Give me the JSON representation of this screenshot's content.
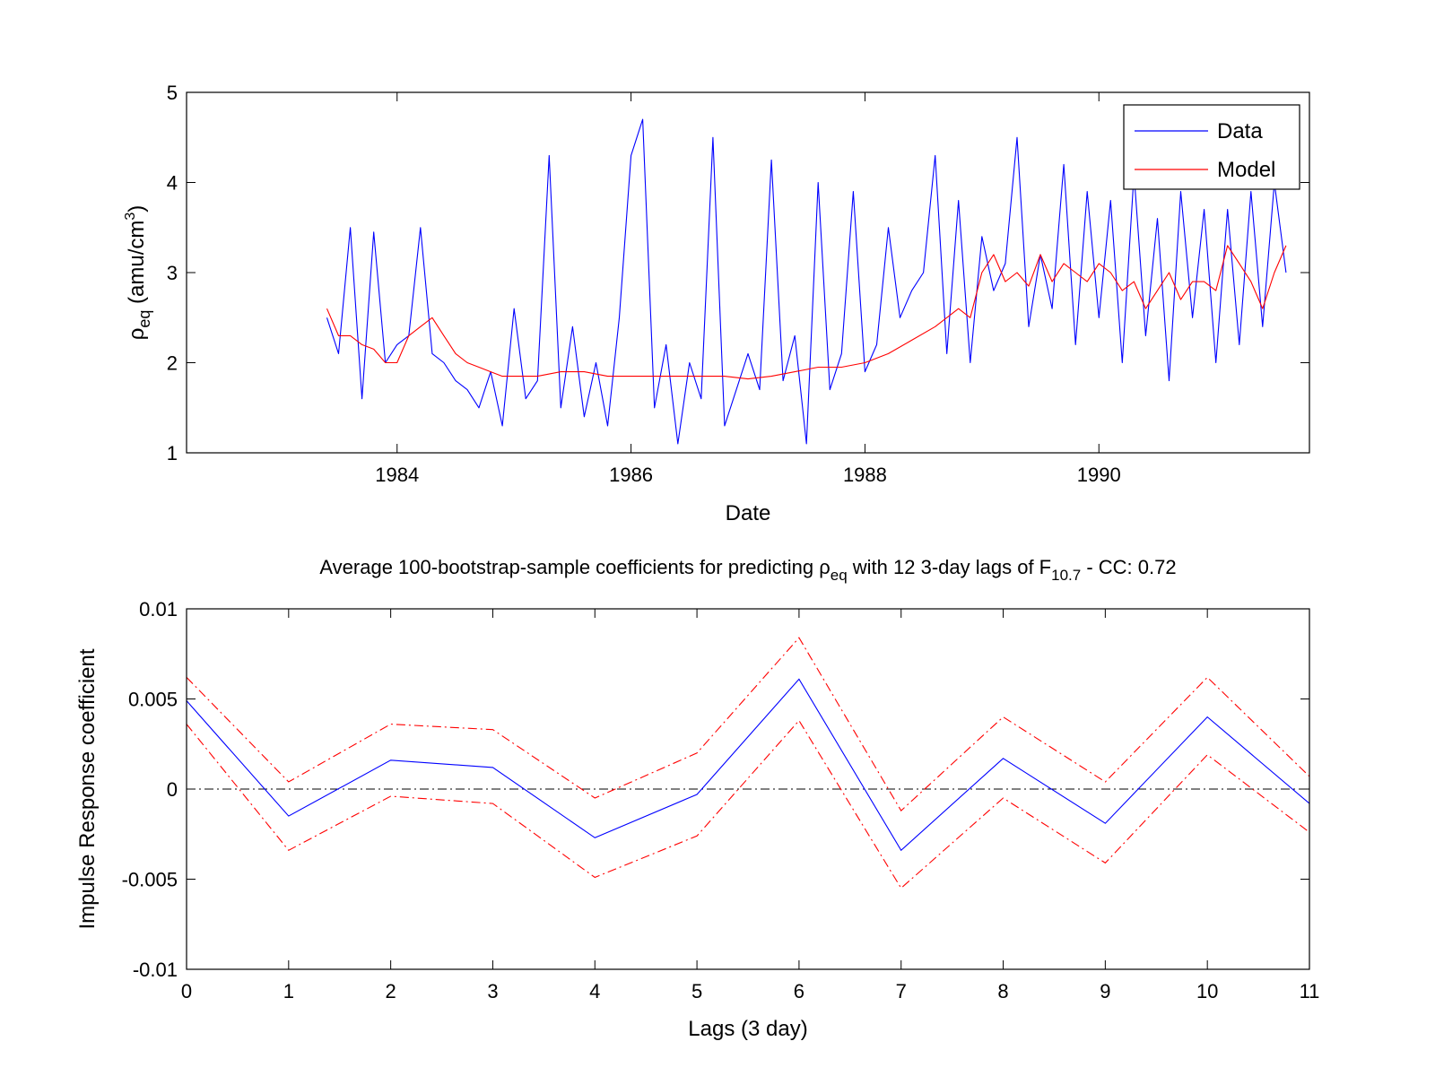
{
  "chart_data": [
    {
      "type": "line",
      "xlabel": "Date",
      "ylabel": {
        "symbol": "ρ",
        "subscript": "eq",
        "unit_prefix": " (amu/cm",
        "unit_sup": "3",
        "unit_suffix": ")"
      },
      "xlim": [
        1982.2,
        1991.8
      ],
      "ylim": [
        1,
        5
      ],
      "xticks": [
        1984,
        1986,
        1988,
        1990
      ],
      "xtick_labels": [
        "1984",
        "1986",
        "1988",
        "1990"
      ],
      "yticks": [
        1,
        2,
        3,
        4,
        5
      ],
      "ytick_labels": [
        "1",
        "2",
        "3",
        "4",
        "5"
      ],
      "legend_position": "top-right",
      "series": [
        {
          "name": "Data",
          "color": "#0000ff",
          "x": [
            1983.4,
            1983.5,
            1983.6,
            1983.7,
            1983.8,
            1983.9,
            1984.0,
            1984.1,
            1984.2,
            1984.3,
            1984.4,
            1984.5,
            1984.6,
            1984.7,
            1984.8,
            1984.9,
            1985.0,
            1985.1,
            1985.2,
            1985.3,
            1985.4,
            1985.5,
            1985.6,
            1985.7,
            1985.8,
            1985.9,
            1986.0,
            1986.1,
            1986.2,
            1986.3,
            1986.4,
            1986.5,
            1986.6,
            1986.7,
            1986.8,
            1986.9,
            1987.0,
            1987.1,
            1987.2,
            1987.3,
            1987.4,
            1987.5,
            1987.6,
            1987.7,
            1987.8,
            1987.9,
            1988.0,
            1988.1,
            1988.2,
            1988.3,
            1988.4,
            1988.5,
            1988.6,
            1988.7,
            1988.8,
            1988.9,
            1989.0,
            1989.1,
            1989.2,
            1989.3,
            1989.4,
            1989.5,
            1989.6,
            1989.7,
            1989.8,
            1989.9,
            1990.0,
            1990.1,
            1990.2,
            1990.3,
            1990.4,
            1990.5,
            1990.6,
            1990.7,
            1990.8,
            1990.9,
            1991.0,
            1991.1,
            1991.2,
            1991.3,
            1991.4,
            1991.5,
            1991.6
          ],
          "values": [
            2.5,
            2.1,
            3.5,
            1.6,
            3.45,
            2.0,
            2.2,
            2.3,
            3.5,
            2.1,
            2.0,
            1.8,
            1.7,
            1.5,
            1.9,
            1.3,
            2.6,
            1.6,
            1.8,
            4.3,
            1.5,
            2.4,
            1.4,
            2.0,
            1.3,
            2.5,
            4.3,
            4.7,
            1.5,
            2.2,
            1.1,
            2.0,
            1.6,
            4.5,
            1.3,
            1.7,
            2.1,
            1.7,
            4.25,
            1.8,
            2.3,
            1.1,
            4.0,
            1.7,
            2.1,
            3.9,
            1.9,
            2.2,
            3.5,
            2.5,
            2.8,
            3.0,
            4.3,
            2.1,
            3.8,
            2.0,
            3.4,
            2.8,
            3.1,
            4.5,
            2.4,
            3.2,
            2.6,
            4.2,
            2.2,
            3.9,
            2.5,
            3.8,
            2.0,
            4.1,
            2.3,
            3.6,
            1.8,
            3.9,
            2.5,
            3.7,
            2.0,
            3.7,
            2.2,
            3.9,
            2.4,
            4.0,
            3.0
          ]
        },
        {
          "name": "Model",
          "color": "#ff0000",
          "x": [
            1983.4,
            1983.5,
            1983.6,
            1983.7,
            1983.8,
            1983.9,
            1984.0,
            1984.1,
            1984.2,
            1984.3,
            1984.4,
            1984.5,
            1984.6,
            1984.7,
            1984.8,
            1984.9,
            1985.0,
            1985.2,
            1985.4,
            1985.6,
            1985.8,
            1986.0,
            1986.2,
            1986.4,
            1986.6,
            1986.8,
            1987.0,
            1987.2,
            1987.4,
            1987.6,
            1987.8,
            1988.0,
            1988.2,
            1988.4,
            1988.6,
            1988.8,
            1988.9,
            1989.0,
            1989.1,
            1989.2,
            1989.3,
            1989.4,
            1989.5,
            1989.6,
            1989.7,
            1989.8,
            1989.9,
            1990.0,
            1990.1,
            1990.2,
            1990.3,
            1990.4,
            1990.5,
            1990.6,
            1990.7,
            1990.8,
            1990.9,
            1991.0,
            1991.1,
            1991.2,
            1991.3,
            1991.4,
            1991.5,
            1991.6
          ],
          "values": [
            2.6,
            2.3,
            2.3,
            2.2,
            2.15,
            2.0,
            2.0,
            2.3,
            2.4,
            2.5,
            2.3,
            2.1,
            2.0,
            1.95,
            1.9,
            1.85,
            1.85,
            1.85,
            1.9,
            1.9,
            1.85,
            1.85,
            1.85,
            1.85,
            1.85,
            1.85,
            1.82,
            1.85,
            1.9,
            1.95,
            1.95,
            2.0,
            2.1,
            2.25,
            2.4,
            2.6,
            2.5,
            3.0,
            3.2,
            2.9,
            3.0,
            2.85,
            3.2,
            2.9,
            3.1,
            3.0,
            2.9,
            3.1,
            3.0,
            2.8,
            2.9,
            2.6,
            2.8,
            3.0,
            2.7,
            2.9,
            2.9,
            2.8,
            3.3,
            3.1,
            2.9,
            2.6,
            3.0,
            3.3
          ]
        }
      ]
    },
    {
      "type": "line",
      "title": {
        "part1": "Average 100-bootstrap-sample coefficients for predicting ",
        "symbol": "ρ",
        "subscript1": "eq",
        "part2": " with 12 3-day lags of F",
        "subscript2": "10.7",
        "part3": " - CC: 0.72"
      },
      "xlabel": "Lags (3 day)",
      "ylabel": "Impulse Response coefficient",
      "xlim": [
        0,
        11
      ],
      "ylim": [
        -0.01,
        0.01
      ],
      "xticks": [
        0,
        1,
        2,
        3,
        4,
        5,
        6,
        7,
        8,
        9,
        10,
        11
      ],
      "xtick_labels": [
        "0",
        "1",
        "2",
        "3",
        "4",
        "5",
        "6",
        "7",
        "8",
        "9",
        "10",
        "11"
      ],
      "yticks": [
        -0.01,
        -0.005,
        0,
        0.005,
        0.01
      ],
      "ytick_labels": [
        "-0.01",
        "-0.005",
        "0",
        "0.005",
        "0.01"
      ],
      "reference_line": {
        "y": 0,
        "style": "dash-dot",
        "color": "#000000"
      },
      "x": [
        0,
        1,
        2,
        3,
        4,
        5,
        6,
        7,
        8,
        9,
        10,
        11
      ],
      "series": [
        {
          "role": "mean",
          "color": "#0000ff",
          "style": "solid",
          "values": [
            0.0049,
            -0.0015,
            0.0016,
            0.0012,
            -0.0027,
            -0.0003,
            0.0061,
            -0.0034,
            0.0017,
            -0.0019,
            0.004,
            -0.0008
          ]
        },
        {
          "role": "upper",
          "color": "#ff0000",
          "style": "dash-dot",
          "values": [
            0.0062,
            0.0004,
            0.0036,
            0.0033,
            -0.0005,
            0.002,
            0.0084,
            -0.0012,
            0.004,
            0.0004,
            0.0062,
            0.0007
          ]
        },
        {
          "role": "lower",
          "color": "#ff0000",
          "style": "dash-dot",
          "values": [
            0.0036,
            -0.0034,
            -0.0004,
            -0.0008,
            -0.0049,
            -0.0026,
            0.0038,
            -0.0055,
            -0.0005,
            -0.0041,
            0.0019,
            -0.0024
          ]
        }
      ]
    }
  ]
}
